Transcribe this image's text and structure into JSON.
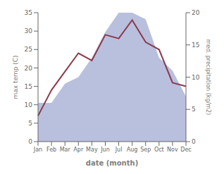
{
  "chart_data": {
    "type": "line",
    "categories": [
      "Jan",
      "Feb",
      "Mar",
      "Apr",
      "May",
      "Jun",
      "Jul",
      "Aug",
      "Sep",
      "Oct",
      "Nov",
      "Dec"
    ],
    "series": [
      {
        "type": "area",
        "axis": "y2",
        "color": "#b8c0de",
        "values": [
          6,
          6,
          9,
          10,
          13,
          17,
          20,
          20,
          19,
          13,
          11,
          7
        ]
      },
      {
        "type": "line",
        "color": "#8b3a4a",
        "values": [
          7,
          14,
          19,
          24,
          22,
          29,
          28,
          33,
          27,
          25,
          16,
          15
        ]
      }
    ],
    "x_label": "date (month)",
    "y_label": "max temp (C)",
    "y2_label": "med. precipitation (kg/m2)",
    "ylim": [
      0,
      35
    ],
    "yticks": [
      0,
      5,
      10,
      15,
      20,
      25,
      30,
      35
    ],
    "y2lim": [
      0,
      20
    ],
    "y2ticks": [
      0,
      5,
      10,
      15,
      20
    ],
    "grid": false
  }
}
